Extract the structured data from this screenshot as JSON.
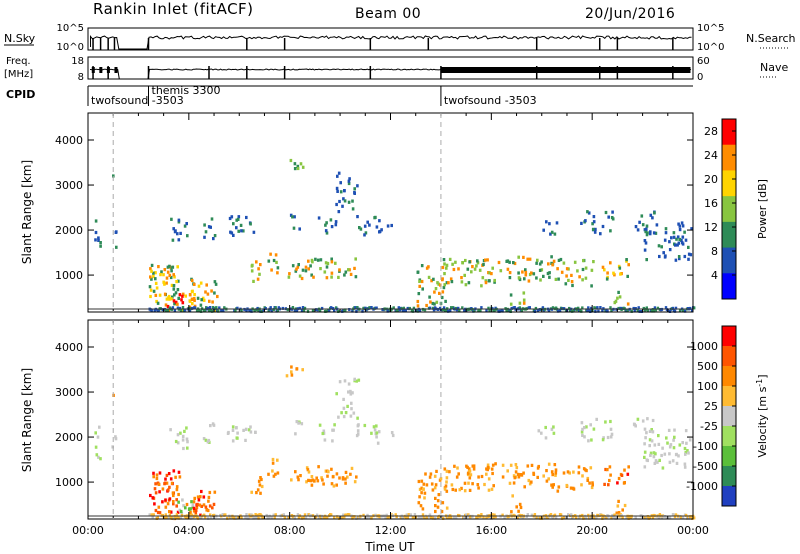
{
  "header": {
    "title": "Rankin Inlet (fitACF)",
    "beam": "Beam 00",
    "date": "20/Jun/2016"
  },
  "top_panels": {
    "nsky_label": "N.Sky",
    "nsky_ticks": [
      "10^5",
      "10^0"
    ],
    "nsearch_label": "N.Search",
    "nsearch_ticks": [
      "10^5",
      "10^0"
    ],
    "freq_label_1": "Freq.",
    "freq_label_2": "[MHz]",
    "freq_ticks": [
      "18",
      "8"
    ],
    "nave_label": "Nave",
    "nave_ticks": [
      "60",
      "0"
    ],
    "cpid_label": "CPID",
    "cpid_segments": [
      {
        "label": "twofsound -3503",
        "start_hour": 0
      },
      {
        "label": "themis 3300",
        "start_hour": 2.4
      },
      {
        "label": "twofsound -3503",
        "start_hour": 14
      }
    ]
  },
  "chart_data": [
    {
      "type": "heatmap",
      "title": "",
      "ylabel": "Slant Range [km]",
      "xlabel": "",
      "xlim": [
        0,
        24
      ],
      "ylim": [
        180,
        4600
      ],
      "y_ticks": [
        1000,
        2000,
        3000,
        4000
      ],
      "x_ticks": [
        "00:00",
        "04:00",
        "08:00",
        "12:00",
        "16:00",
        "20:00",
        "00:00"
      ],
      "colorbar": {
        "label": "Power [dB]",
        "ticks": [
          "4",
          "8",
          "12",
          "16",
          "20",
          "24",
          "28"
        ],
        "colors": [
          "#0000ff",
          "#1e50b4",
          "#2e8b57",
          "#88c540",
          "#ffd400",
          "#ff8c00",
          "#ff0000"
        ],
        "range": [
          0,
          30
        ]
      }
    },
    {
      "type": "heatmap",
      "title": "",
      "ylabel": "Slant Range [km]",
      "xlabel": "Time UT",
      "xlim": [
        0,
        24
      ],
      "ylim": [
        180,
        4600
      ],
      "y_ticks": [
        1000,
        2000,
        3000,
        4000
      ],
      "x_ticks": [
        "00:00",
        "04:00",
        "08:00",
        "12:00",
        "16:00",
        "20:00",
        "00:00"
      ],
      "colorbar": {
        "label": "Velocity [m s",
        "label_superscript": "-1",
        "label_suffix": "]",
        "ticks": [
          "1000",
          "500",
          "100",
          "25",
          "-25",
          "-100",
          "-500",
          "-1000"
        ],
        "colors": [
          "#2040c0",
          "#2e8b57",
          "#5bbf3a",
          "#a0e060",
          "#c8c8c8",
          "#ffbb33",
          "#ff8800",
          "#ff5500",
          "#ff0000"
        ]
      }
    }
  ]
}
